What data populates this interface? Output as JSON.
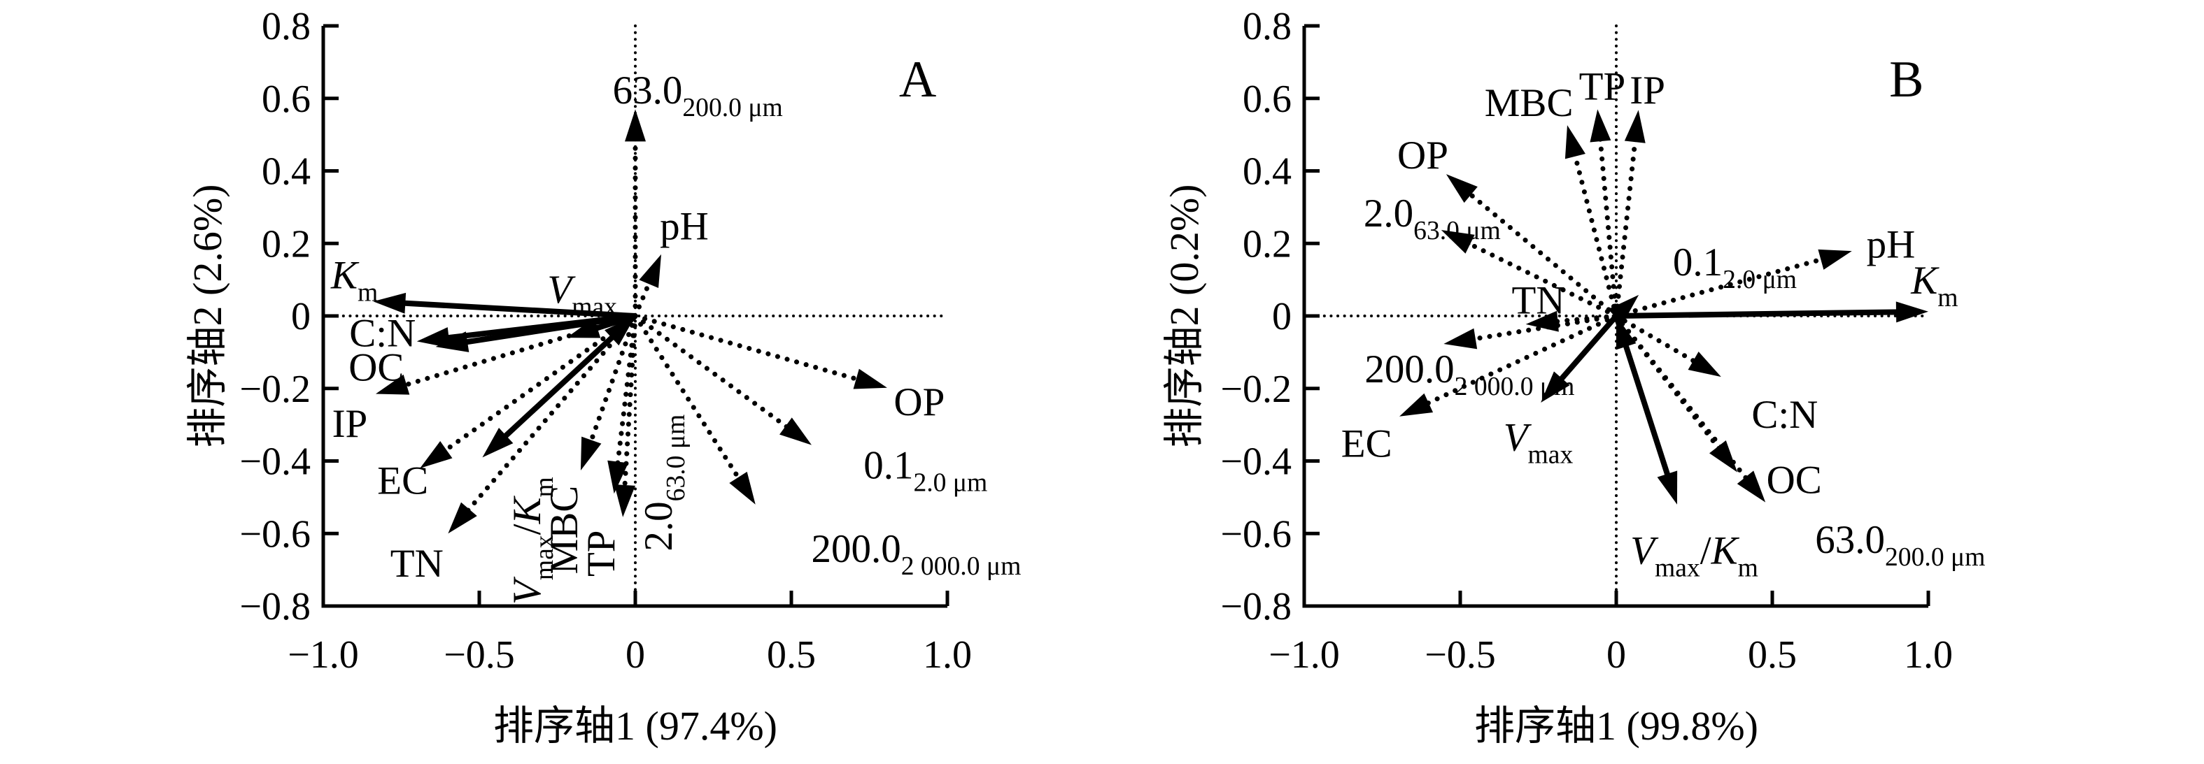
{
  "figure": {
    "background_color": "#ffffff",
    "ink_color": "#000000",
    "description_visible_text_only": true
  },
  "chart_data": [
    {
      "type": "biplot",
      "panel_label": "A",
      "panel_label_pos": {
        "x": 0.905,
        "y": 0.655
      },
      "xlabel": "排序轴1 (97.4%)",
      "ylabel": "排序轴2 (2.6%)",
      "xlim": [
        -1.0,
        1.0
      ],
      "ylim": [
        -0.8,
        0.8
      ],
      "grid": false,
      "xticks": [
        -1.0,
        -0.5,
        0,
        0.5,
        1.0
      ],
      "xtick_labels": [
        "−1.0",
        "−0.5",
        "0",
        "0.5",
        "1.0"
      ],
      "yticks": [
        -0.8,
        -0.6,
        -0.4,
        -0.2,
        0,
        0.2,
        0.4,
        0.6,
        0.8
      ],
      "ytick_labels": [
        "−0.8",
        "−0.6",
        "−0.4",
        "−0.2",
        "0",
        "0.2",
        "0.4",
        "0.6",
        "0.8"
      ],
      "arrows": [
        {
          "name": "Km",
          "label": "*K*~m~",
          "x": -0.84,
          "y": 0.04,
          "style": "solid",
          "label_x": -0.9,
          "label_y": 0.115
        },
        {
          "name": "C-N",
          "label": "C:N",
          "x": -0.7,
          "y": -0.07,
          "style": "solid",
          "label_x": -0.81,
          "label_y": -0.045
        },
        {
          "name": "OC",
          "label": "OC",
          "x": -0.64,
          "y": -0.085,
          "style": "solid",
          "label_x": -0.83,
          "label_y": -0.14
        },
        {
          "name": "Vmax",
          "label": "*V*~max~",
          "x": -0.22,
          "y": -0.06,
          "style": "solid",
          "label_x": -0.17,
          "label_y": 0.075
        },
        {
          "name": "Vmax-Km",
          "label": "*V*~max~/*K*~m~",
          "x": -0.49,
          "y": -0.39,
          "style": "solid",
          "double_head": true,
          "label_x": -0.35,
          "label_y": -0.62,
          "label_rotate": -90
        },
        {
          "name": "63.0-200.0um",
          "label": "63.0~200.0 μm",
          "x": 0.0,
          "y": 0.57,
          "style": "dotted",
          "label_x": 0.2,
          "label_y": 0.625
        },
        {
          "name": "pH",
          "label": "pH",
          "x": 0.083,
          "y": 0.17,
          "style": "dotted",
          "label_x": 0.157,
          "label_y": 0.25
        },
        {
          "name": "IP",
          "label": "IP",
          "x": -0.832,
          "y": -0.215,
          "style": "dotted",
          "label_x": -0.915,
          "label_y": -0.295
        },
        {
          "name": "EC",
          "label": "EC",
          "x": -0.69,
          "y": -0.42,
          "style": "dotted",
          "label_x": -0.745,
          "label_y": -0.452
        },
        {
          "name": "TN",
          "label": "TN",
          "x": -0.6,
          "y": -0.6,
          "style": "dotted",
          "label_x": -0.7,
          "label_y": -0.68
        },
        {
          "name": "MBC",
          "label": "MBC",
          "x": -0.175,
          "y": -0.426,
          "style": "dotted",
          "label_x": -0.231,
          "label_y": -0.59,
          "label_rotate": -90
        },
        {
          "name": "TP",
          "label": "TP",
          "x": -0.068,
          "y": -0.49,
          "style": "dotted",
          "label_x": -0.112,
          "label_y": -0.655,
          "label_rotate": -90
        },
        {
          "name": "2.0-63.0um",
          "label": "2.0~63.0 μm",
          "x": -0.04,
          "y": -0.555,
          "style": "dotted",
          "label_x": 0.072,
          "label_y": -0.46,
          "label_rotate": -90
        },
        {
          "name": "OP",
          "label": "OP",
          "x": 0.807,
          "y": -0.198,
          "style": "dotted",
          "label_x": 0.91,
          "label_y": -0.235
        },
        {
          "name": "0.1-2.0um",
          "label": "0.1~2.0 μm",
          "x": 0.565,
          "y": -0.356,
          "style": "dotted",
          "label_x": 0.93,
          "label_y": -0.41
        },
        {
          "name": "200.0-2000.0um",
          "label": "200.0~2 000.0 μm",
          "x": 0.385,
          "y": -0.52,
          "style": "dotted",
          "label_x": 0.9,
          "label_y": -0.64
        }
      ]
    },
    {
      "type": "biplot",
      "panel_label": "B",
      "panel_label_pos": {
        "x": 0.93,
        "y": 0.655
      },
      "xlabel": "排序轴1 (99.8%)",
      "ylabel": "排序轴2 (0.2%)",
      "xlim": [
        -1.0,
        1.0
      ],
      "ylim": [
        -0.8,
        0.8
      ],
      "grid": false,
      "xticks": [
        -1.0,
        -0.5,
        0,
        0.5,
        1.0
      ],
      "xtick_labels": [
        "−1.0",
        "−0.5",
        "0",
        "0.5",
        "1.0"
      ],
      "yticks": [
        -0.8,
        -0.6,
        -0.4,
        -0.2,
        0,
        0.2,
        0.4,
        0.6,
        0.8
      ],
      "ytick_labels": [
        "−0.8",
        "−0.6",
        "−0.4",
        "−0.2",
        "0",
        "0.2",
        "0.4",
        "0.6",
        "0.8"
      ],
      "arrows": [
        {
          "name": "Km",
          "label": "*K*~m~",
          "x": 1.0,
          "y": 0.012,
          "style": "solid",
          "label_x": 1.02,
          "label_y": 0.1
        },
        {
          "name": "Vmax",
          "label": "*V*~max~",
          "x": -0.242,
          "y": -0.239,
          "style": "solid",
          "label_x": -0.25,
          "label_y": -0.333
        },
        {
          "name": "Vmax-Km",
          "label": "*V*~max~/*K*~m~",
          "x": 0.195,
          "y": -0.52,
          "style": "solid",
          "double_head": true,
          "label_x": 0.25,
          "label_y": -0.645
        },
        {
          "name": "MBC",
          "label": "MBC",
          "x": -0.157,
          "y": 0.526,
          "style": "dotted",
          "label_x": -0.28,
          "label_y": 0.59
        },
        {
          "name": "TP",
          "label": "TP",
          "x": -0.06,
          "y": 0.57,
          "style": "dotted",
          "label_x": -0.045,
          "label_y": 0.635
        },
        {
          "name": "IP",
          "label": "IP",
          "x": 0.071,
          "y": 0.568,
          "style": "dotted",
          "label_x": 0.1,
          "label_y": 0.625
        },
        {
          "name": "OP",
          "label": "OP",
          "x": -0.545,
          "y": 0.391,
          "style": "dotted",
          "label_x": -0.62,
          "label_y": 0.445
        },
        {
          "name": "2.0-63.0um",
          "label": "2.0~63.0 μm",
          "x": -0.561,
          "y": 0.237,
          "style": "dotted",
          "label_x": -0.59,
          "label_y": 0.285
        },
        {
          "name": "0.1-2.0um",
          "label": "0.1~2.0 μm",
          "x": 0.072,
          "y": 0.058,
          "style": "dotted",
          "label_x": 0.38,
          "label_y": 0.15
        },
        {
          "name": "pH",
          "label": "pH",
          "x": 0.755,
          "y": 0.179,
          "style": "dotted",
          "label_x": 0.88,
          "label_y": 0.2
        },
        {
          "name": "TN",
          "label": "TN",
          "x": -0.29,
          "y": -0.023,
          "style": "dotted",
          "label_x": -0.25,
          "label_y": 0.045
        },
        {
          "name": "200.0-2000.0um",
          "label": "200.0~2 000.0 μm",
          "x": -0.553,
          "y": -0.077,
          "style": "dotted",
          "label_x": -0.47,
          "label_y": -0.145
        },
        {
          "name": "EC",
          "label": "EC",
          "x": -0.695,
          "y": -0.277,
          "style": "dotted",
          "label_x": -0.8,
          "label_y": -0.35
        },
        {
          "name": "C-N",
          "label": "C:N",
          "x": 0.336,
          "y": -0.168,
          "style": "dotted",
          "label_x": 0.54,
          "label_y": -0.27
        },
        {
          "name": "OC",
          "label": "OC",
          "x": 0.388,
          "y": -0.431,
          "style": "dotted",
          "label_x": 0.57,
          "label_y": -0.45
        },
        {
          "name": "63.0-200.0um",
          "label": "63.0~200.0 μm",
          "x": 0.478,
          "y": -0.514,
          "style": "dotted",
          "label_x": 0.91,
          "label_y": -0.615
        }
      ]
    }
  ]
}
